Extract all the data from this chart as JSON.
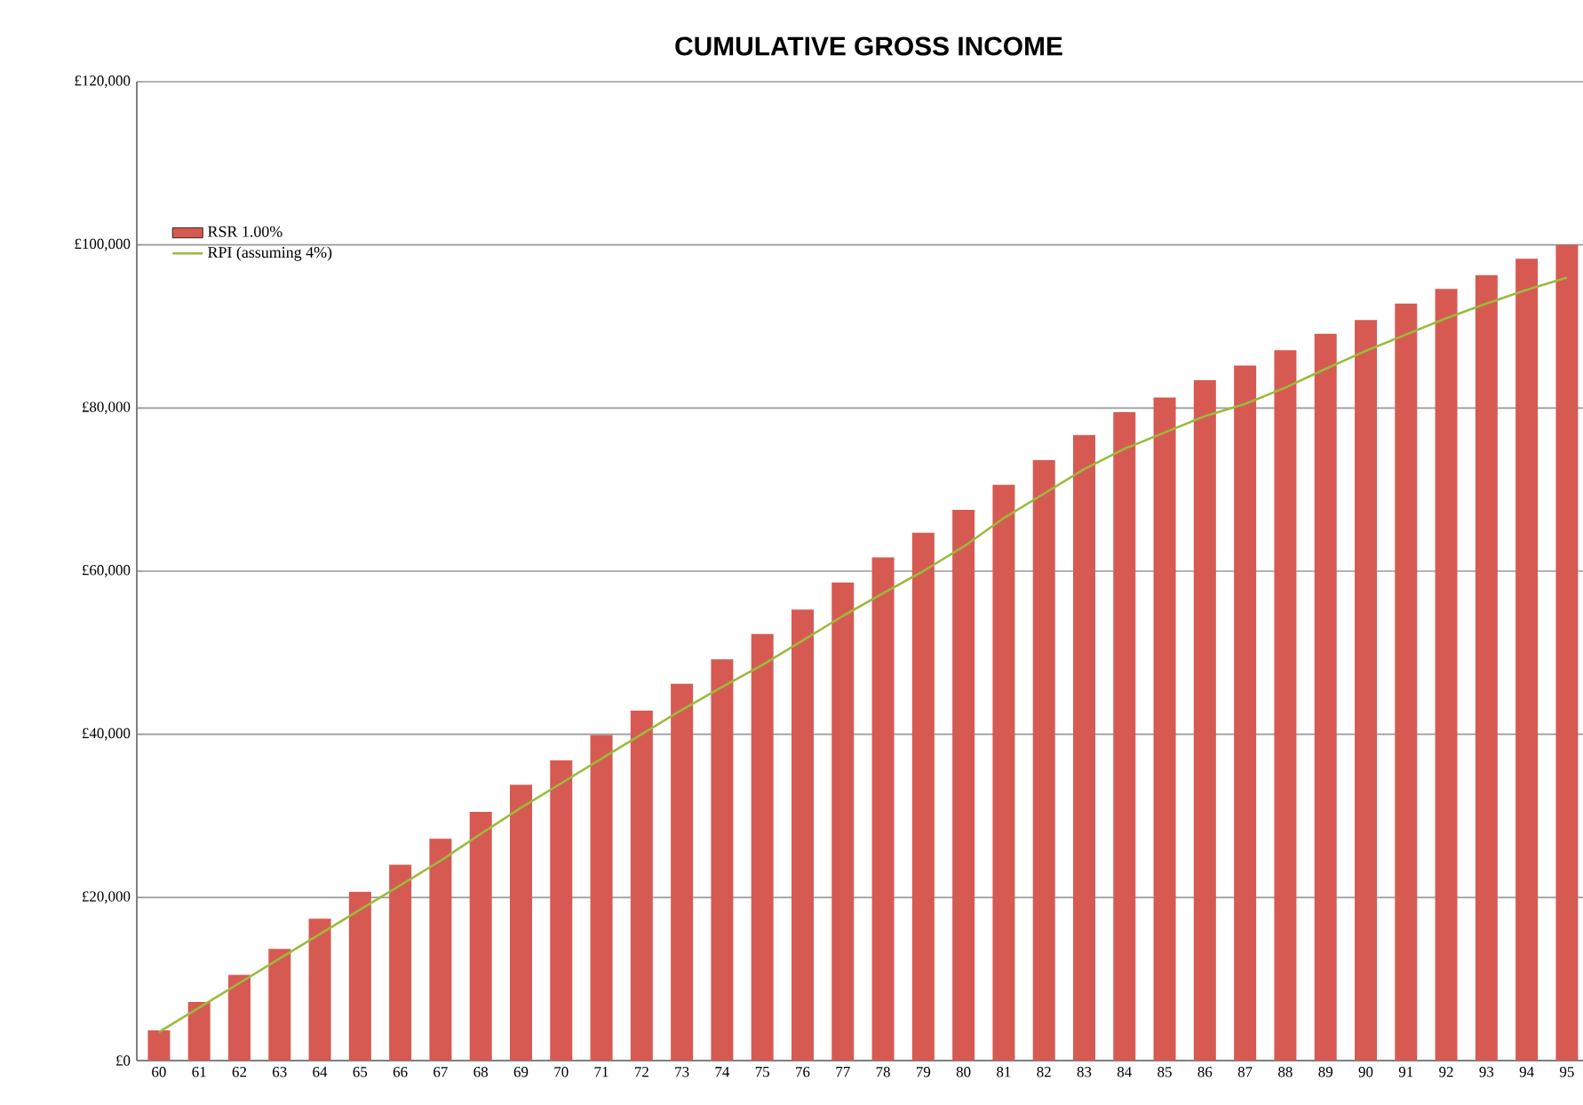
{
  "chart_data": {
    "type": "bar",
    "title": "CUMULATIVE GROSS INCOME",
    "categories": [
      "60",
      "61",
      "62",
      "63",
      "64",
      "65",
      "66",
      "67",
      "68",
      "69",
      "70",
      "71",
      "72",
      "73",
      "74",
      "75",
      "76",
      "77",
      "78",
      "79",
      "80",
      "81",
      "82",
      "83",
      "84",
      "85",
      "86",
      "87",
      "88",
      "89",
      "90",
      "91",
      "92",
      "93",
      "94",
      "95"
    ],
    "series": [
      {
        "name": "RSR 1.00%",
        "color": "#d65a52",
        "values": [
          3700,
          7200,
          10500,
          13700,
          17400,
          20700,
          24000,
          27200,
          30500,
          33800,
          36800,
          39900,
          42900,
          46200,
          49200,
          52300,
          55300,
          58600,
          61700,
          64700,
          67500,
          70600,
          73600,
          76700,
          79500,
          81300,
          83400,
          85200,
          87100,
          89100,
          90800,
          92800,
          94600,
          96300,
          98300,
          100000
        ]
      },
      {
        "name": "RPI (assuming 4%)",
        "type": "line",
        "color": "#9cba3c",
        "values": [
          3500,
          6500,
          9500,
          12500,
          15500,
          18500,
          21500,
          24500,
          27800,
          31000,
          34000,
          37000,
          40000,
          43000,
          45800,
          48500,
          51500,
          54500,
          57300,
          60000,
          63000,
          66500,
          69500,
          72500,
          75000,
          77000,
          79000,
          80500,
          82500,
          84800,
          87000,
          89000,
          91000,
          92800,
          94500,
          96000
        ]
      }
    ],
    "ylim": [
      0,
      120000
    ],
    "yticks": [
      {
        "value": 0,
        "label": "£0"
      },
      {
        "value": 20000,
        "label": "£20,000"
      },
      {
        "value": 40000,
        "label": "£40,000"
      },
      {
        "value": 60000,
        "label": "£60,000"
      },
      {
        "value": 80000,
        "label": "£80,000"
      },
      {
        "value": 100000,
        "label": "£100,000"
      },
      {
        "value": 120000,
        "label": "£120,000"
      }
    ],
    "grid": "y",
    "legend": "top left"
  }
}
